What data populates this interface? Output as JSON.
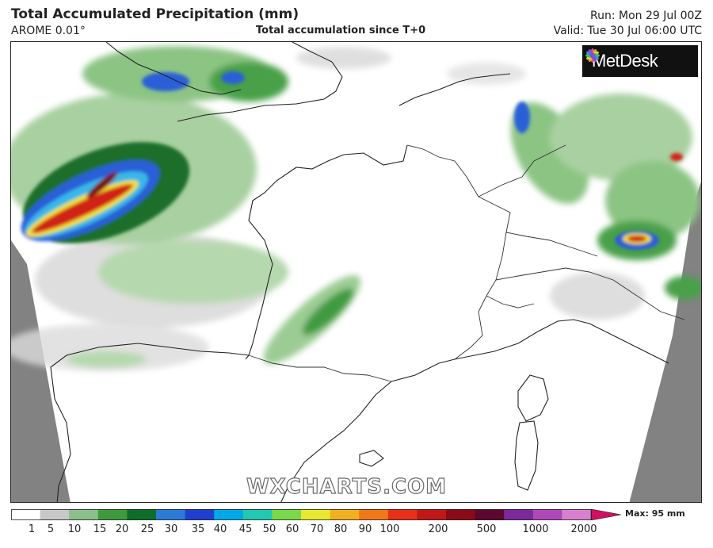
{
  "header": {
    "title": "Total Accumulated Precipitation (mm)",
    "model": "AROME 0.01°",
    "subtitle": "Total accumulation since T+0",
    "run": "Run: Mon 29 Jul 00Z",
    "valid": "Valid: Tue 30 Jul 06:00 UTC"
  },
  "logo": {
    "text": "MetDesk",
    "icon": "metdesk-flower-icon"
  },
  "watermark": "WXCHARTS.COM",
  "legend": {
    "labels": [
      "1",
      "5",
      "10",
      "15",
      "20",
      "25",
      "30",
      "35",
      "40",
      "45",
      "50",
      "60",
      "70",
      "80",
      "90",
      "100",
      "200",
      "500",
      "1000",
      "2000"
    ],
    "max_text": "Max: 95 mm",
    "colors": [
      "#ffffff",
      "#c8c8c8",
      "#8bbf8b",
      "#3f9a3f",
      "#0d6e2a",
      "#2a7bd6",
      "#1f3fd0",
      "#00a8e8",
      "#22c8b0",
      "#7ad84a",
      "#e8e830",
      "#f0b020",
      "#f07818",
      "#e83018",
      "#c01818",
      "#8a0a18",
      "#5c0830",
      "#7a2a9a",
      "#b048b8",
      "#d880d0"
    ]
  },
  "map": {
    "region": "France and surroundings",
    "colors": {
      "no_data": "#828282",
      "light": "#d6d6d6",
      "pale_green": "#a8d0a0",
      "green": "#4aa04a",
      "dark_green": "#1a6e2a",
      "blue": "#2a5fd8",
      "light_blue": "#38b8e8",
      "yellow": "#f0e030",
      "red": "#d02018",
      "dark_red": "#7a0a10",
      "coast": "#222222"
    }
  }
}
